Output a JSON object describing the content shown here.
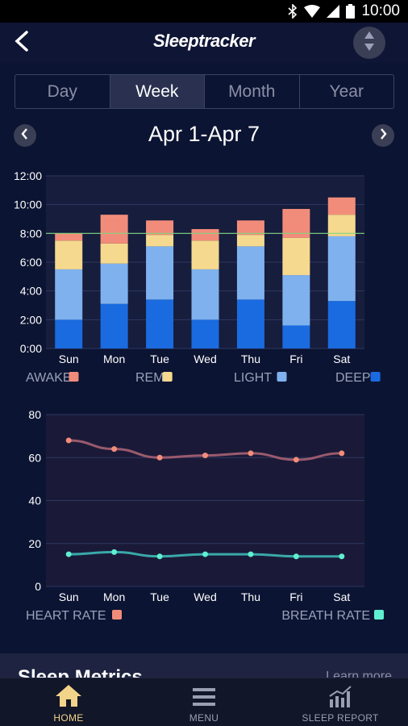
{
  "status_bar": {
    "time": "10:00",
    "icons": [
      "bluetooth-icon",
      "wifi-icon",
      "signal-icon",
      "battery-icon"
    ]
  },
  "header": {
    "title": "Sleeptracker",
    "back_icon": "back-arrow-icon",
    "sort_icon": "sort-updown-icon"
  },
  "tabs": [
    {
      "label": "Day",
      "active": false
    },
    {
      "label": "Week",
      "active": true
    },
    {
      "label": "Month",
      "active": false
    },
    {
      "label": "Year",
      "active": false
    }
  ],
  "date_range": {
    "label": "Apr 1-Apr 7"
  },
  "colors": {
    "awake": "#f28c7a",
    "rem": "#f5d98e",
    "light": "#7fb1ee",
    "deep": "#1a6be0",
    "heart_line": "#9a5a6e",
    "heart_point": "#f28c7a",
    "breath_line": "#3aa8a8",
    "breath_point": "#5ef0d0",
    "goal_line": "#7ed67e",
    "nav_active": "#f2d38a"
  },
  "chart_data": [
    {
      "type": "bar",
      "stacked": true,
      "categories": [
        "Sun",
        "Mon",
        "Tue",
        "Wed",
        "Thu",
        "Fri",
        "Sat"
      ],
      "ylim": [
        0,
        12
      ],
      "y_ticks": [
        "0:00",
        "2:00",
        "4:00",
        "6:00",
        "8:00",
        "10:00",
        "12:00"
      ],
      "goal": 8,
      "grid": true,
      "series": [
        {
          "name": "DEEP",
          "values": [
            2.0,
            3.1,
            3.4,
            2.0,
            3.4,
            1.6,
            3.3
          ]
        },
        {
          "name": "LIGHT",
          "values": [
            3.5,
            2.8,
            3.7,
            3.5,
            3.7,
            3.5,
            4.5
          ]
        },
        {
          "name": "REM",
          "values": [
            2.0,
            1.4,
            0.8,
            2.0,
            0.8,
            2.6,
            1.5
          ]
        },
        {
          "name": "AWAKE",
          "values": [
            0.5,
            2.0,
            1.0,
            0.8,
            1.0,
            2.0,
            1.2
          ]
        }
      ],
      "legend": {
        "placement": "bottom"
      }
    },
    {
      "type": "line",
      "x": [
        "Sun",
        "Mon",
        "Tue",
        "Wed",
        "Thu",
        "Fri",
        "Sat"
      ],
      "ylim": [
        0,
        80
      ],
      "y_ticks": [
        "0",
        "20",
        "40",
        "60",
        "80"
      ],
      "grid": true,
      "series": [
        {
          "name": "HEART RATE",
          "values": [
            68,
            64,
            60,
            61,
            62,
            59,
            62
          ]
        },
        {
          "name": "BREATH RATE",
          "values": [
            15,
            16,
            14,
            15,
            15,
            14,
            14
          ]
        }
      ],
      "legend": {
        "placement": "bottom"
      }
    }
  ],
  "metrics": {
    "title": "Sleep Metrics",
    "link": "Learn more"
  },
  "bottom_nav": [
    {
      "label": "HOME",
      "icon": "home-icon",
      "active": true
    },
    {
      "label": "MENU",
      "icon": "menu-icon",
      "active": false
    },
    {
      "label": "SLEEP REPORT",
      "icon": "sleep-report-icon",
      "active": false
    }
  ]
}
